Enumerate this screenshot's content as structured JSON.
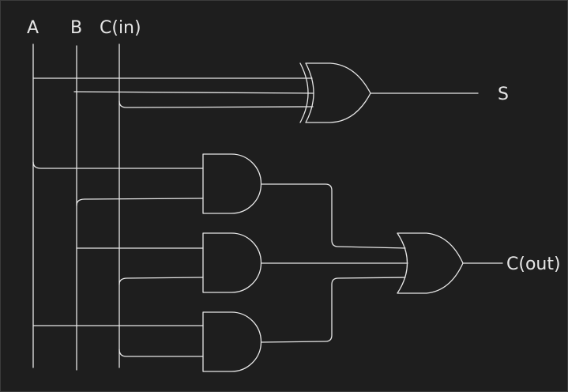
{
  "inputs": {
    "a": "A",
    "b": "B",
    "cin": "C(in)"
  },
  "outputs": {
    "sum": "S",
    "cout": "C(out)"
  },
  "gates": {
    "xor3": "xor-gate",
    "and_ab": "and-gate",
    "and_bcin": "and-gate",
    "and_acin": "and-gate",
    "or3": "or-gate"
  },
  "colors": {
    "background": "#1e1e1e",
    "stroke": "#e6e6e6"
  }
}
